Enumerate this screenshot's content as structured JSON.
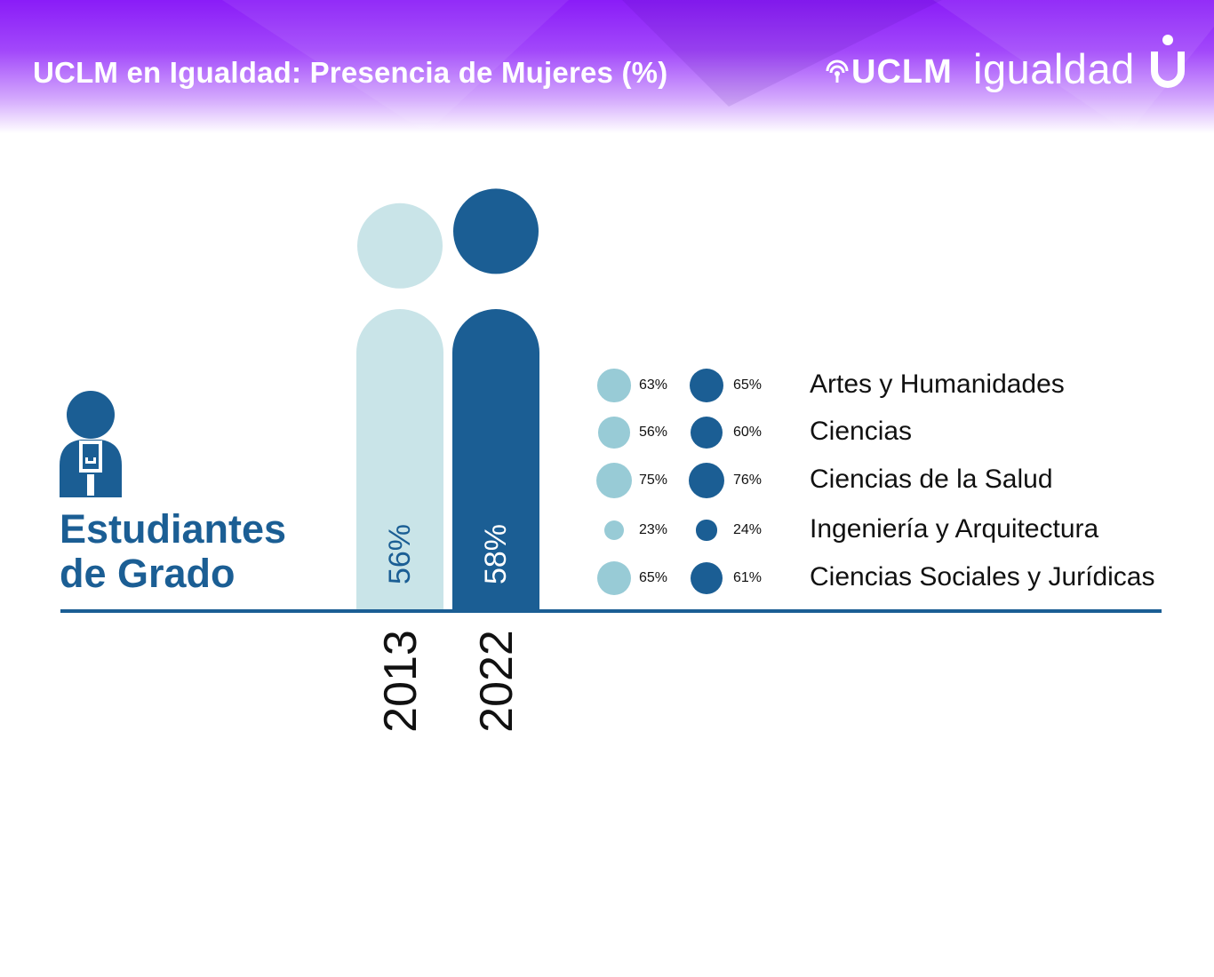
{
  "header": {
    "title": "UCLM en Igualdad: Presencia de Mujeres (%)",
    "logo_bold": "UCLM",
    "logo_thin": "igualdad"
  },
  "section": {
    "title_line1": "Estudiantes",
    "title_line2": "de Grado"
  },
  "colors": {
    "color_2013": "#98cbd6",
    "color_2013_bar": "#c9e4e8",
    "color_2022": "#1b5e94",
    "header_purple": "#8a1cf8"
  },
  "chart_data": [
    {
      "type": "bar",
      "categories": [
        "2013",
        "2022"
      ],
      "values": [
        56,
        58
      ],
      "value_labels": [
        "56%",
        "58%"
      ],
      "unit": "%"
    },
    {
      "type": "scatter",
      "categories": [
        "Artes y Humanidades",
        "Ciencias",
        "Ciencias de la Salud",
        "Ingeniería y Arquitectura",
        "Ciencias Sociales y Jurídicas"
      ],
      "series": [
        {
          "name": "2013",
          "values": [
            63,
            56,
            75,
            23,
            65
          ],
          "labels": [
            "63%",
            "56%",
            "75%",
            "23%",
            "65%"
          ]
        },
        {
          "name": "2022",
          "values": [
            65,
            60,
            76,
            24,
            61
          ],
          "labels": [
            "65%",
            "60%",
            "76%",
            "24%",
            "61%"
          ]
        }
      ],
      "unit": "%"
    }
  ]
}
